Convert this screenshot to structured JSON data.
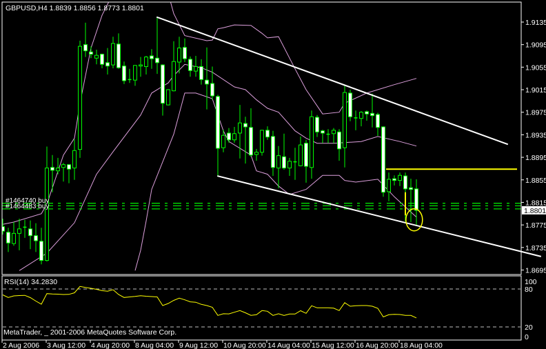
{
  "window": {
    "symbol_header": "GBPUSD,H4  1.8839 1.8856 1.8773 1.8801",
    "copyright": "MetaTrader, _ 2001-2006 MetaQuotes Software Corp."
  },
  "colors": {
    "background": "#000000",
    "frame": "#ffffff",
    "candle_outline": "#00ff00",
    "bear_body": "#ffffff",
    "bull_body": "#000000",
    "bollinger": "#dda0dd",
    "trendline": "#ffffff",
    "annotation": "#ffff00",
    "order_line": "#00e000",
    "rsi_line": "#ffff00",
    "rsi_level": "#c0c0c0"
  },
  "orders": [
    {
      "label": "#1464740 buy",
      "price": 1.8811
    },
    {
      "label": "#1464483 buy",
      "price": 1.8801
    }
  ],
  "chart_data": [
    {
      "type": "candlestick",
      "title": "GBPUSD,H4",
      "ohlc_header": {
        "open": 1.8839,
        "high": 1.8856,
        "low": 1.8773,
        "close": 1.8801
      },
      "current_price": "1.8801",
      "ylim": [
        1.8695,
        1.9135
      ],
      "y_ticks": [
        "1.9135",
        "1.9095",
        "1.9055",
        "1.9015",
        "1.8975",
        "1.8935",
        "1.8895",
        "1.8855",
        "1.8815",
        "1.8775",
        "1.8735",
        "1.8695"
      ],
      "x_ticks": [
        {
          "bar": 0,
          "label": "2 Aug 2006"
        },
        {
          "bar": 8,
          "label": "3 Aug 12:00"
        },
        {
          "bar": 16,
          "label": "4 Aug 20:00"
        },
        {
          "bar": 24,
          "label": "8 Aug 04:00"
        },
        {
          "bar": 32,
          "label": "9 Aug 12:00"
        },
        {
          "bar": 40,
          "label": "10 Aug 20:00"
        },
        {
          "bar": 48,
          "label": "14 Aug 04:00"
        },
        {
          "bar": 56,
          "label": "15 Aug 12:00"
        },
        {
          "bar": 64,
          "label": "16 Aug 20:00"
        },
        {
          "bar": 72,
          "label": "18 Aug 04:00"
        }
      ],
      "candles_ohlc": [
        [
          1.8772,
          1.8786,
          1.8758,
          1.8764
        ],
        [
          1.8762,
          1.877,
          1.8727,
          1.8743
        ],
        [
          1.8742,
          1.878,
          1.8738,
          1.876
        ],
        [
          1.876,
          1.8786,
          1.873,
          1.8768
        ],
        [
          1.877,
          1.8784,
          1.8752,
          1.8771
        ],
        [
          1.8768,
          1.8783,
          1.8732,
          1.8756
        ],
        [
          1.8756,
          1.8778,
          1.8727,
          1.8747
        ],
        [
          1.8746,
          1.877,
          1.8705,
          1.8712
        ],
        [
          1.8712,
          1.8914,
          1.871,
          1.8876
        ],
        [
          1.8877,
          1.8899,
          1.8833,
          1.8872
        ],
        [
          1.8871,
          1.8894,
          1.8865,
          1.8876
        ],
        [
          1.8877,
          1.8885,
          1.8852,
          1.8882
        ],
        [
          1.8882,
          1.8883,
          1.8849,
          1.8874
        ],
        [
          1.8876,
          1.8927,
          1.8855,
          1.8907
        ],
        [
          1.8909,
          1.9102,
          1.8894,
          1.9092
        ],
        [
          1.9095,
          1.9134,
          1.9073,
          1.9084
        ],
        [
          1.9082,
          1.9092,
          1.9071,
          1.9078
        ],
        [
          1.9071,
          1.9086,
          1.906,
          1.9076
        ],
        [
          1.9078,
          1.9079,
          1.9053,
          1.906
        ],
        [
          1.9063,
          1.9089,
          1.9042,
          1.9057
        ],
        [
          1.9059,
          1.9109,
          1.9053,
          1.9097
        ],
        [
          1.9096,
          1.9115,
          1.9052,
          1.9054
        ],
        [
          1.9057,
          1.9065,
          1.9025,
          1.9031
        ],
        [
          1.9032,
          1.9052,
          1.9027,
          1.9033
        ],
        [
          1.9032,
          1.9059,
          1.9022,
          1.9058
        ],
        [
          1.9057,
          1.9073,
          1.9038,
          1.9059
        ],
        [
          1.9056,
          1.9075,
          1.9042,
          1.9073
        ],
        [
          1.9075,
          1.9087,
          1.9052,
          1.907
        ],
        [
          1.9071,
          1.9144,
          1.9043,
          1.9063
        ],
        [
          1.9059,
          1.906,
          1.8969,
          1.8991
        ],
        [
          1.8988,
          1.9016,
          1.8987,
          1.9015
        ],
        [
          1.9013,
          1.9101,
          1.9012,
          1.9065
        ],
        [
          1.9064,
          1.9109,
          1.9044,
          1.9089
        ],
        [
          1.909,
          1.9106,
          1.9064,
          1.907
        ],
        [
          1.9069,
          1.9074,
          1.9038,
          1.9049
        ],
        [
          1.9048,
          1.9075,
          1.9038,
          1.9056
        ],
        [
          1.9056,
          1.9069,
          1.9024,
          1.9033
        ],
        [
          1.9032,
          1.909,
          1.898,
          1.9025
        ],
        [
          1.9026,
          1.9056,
          1.8997,
          1.9004
        ],
        [
          1.9003,
          1.9006,
          1.8862,
          1.8911
        ],
        [
          1.8912,
          1.8944,
          1.8904,
          1.8934
        ],
        [
          1.8938,
          1.8947,
          1.8921,
          1.8926
        ],
        [
          1.8926,
          1.8949,
          1.8921,
          1.8937
        ],
        [
          1.8938,
          1.8988,
          1.8893,
          1.8956
        ],
        [
          1.8955,
          1.8967,
          1.8884,
          1.8949
        ],
        [
          1.8948,
          1.8982,
          1.8896,
          1.8899
        ],
        [
          1.89,
          1.891,
          1.8889,
          1.8904
        ],
        [
          1.8904,
          1.8944,
          1.8898,
          1.8943
        ],
        [
          1.8943,
          1.895,
          1.8926,
          1.8931
        ],
        [
          1.8932,
          1.8942,
          1.8862,
          1.8877
        ],
        [
          1.8876,
          1.8915,
          1.884,
          1.8898
        ],
        [
          1.8896,
          1.8937,
          1.8873,
          1.8876
        ],
        [
          1.8876,
          1.8894,
          1.8862,
          1.8888
        ],
        [
          1.8887,
          1.8912,
          1.8855,
          1.8886
        ],
        [
          1.888,
          1.8932,
          1.8879,
          1.8917
        ],
        [
          1.892,
          1.8926,
          1.885,
          1.8879
        ],
        [
          1.8877,
          1.8978,
          1.8857,
          1.8967
        ],
        [
          1.8966,
          1.897,
          1.8931,
          1.894
        ],
        [
          1.8942,
          1.8944,
          1.892,
          1.8938
        ],
        [
          1.8936,
          1.8945,
          1.892,
          1.8935
        ],
        [
          1.8937,
          1.8947,
          1.892,
          1.8943
        ],
        [
          1.894,
          1.8945,
          1.8889,
          1.891
        ],
        [
          1.8912,
          1.9024,
          1.8877,
          1.901
        ],
        [
          1.9009,
          1.9015,
          1.8959,
          1.8967
        ],
        [
          1.8965,
          1.8978,
          1.8943,
          1.8964
        ],
        [
          1.8964,
          1.8977,
          1.895,
          1.8975
        ],
        [
          1.8976,
          1.8978,
          1.896,
          1.8972
        ],
        [
          1.8973,
          1.9008,
          1.8948,
          1.8969
        ],
        [
          1.8971,
          1.8974,
          1.8933,
          1.8948
        ],
        [
          1.8949,
          1.895,
          1.8825,
          1.8833
        ],
        [
          1.8834,
          1.8868,
          1.8817,
          1.8856
        ],
        [
          1.8857,
          1.8863,
          1.8845,
          1.8854
        ],
        [
          1.8854,
          1.8868,
          1.8844,
          1.8863
        ],
        [
          1.8862,
          1.8868,
          1.8781,
          1.8839
        ],
        [
          1.8841,
          1.8857,
          1.878,
          1.8838
        ],
        [
          1.8839,
          1.8856,
          1.8773,
          1.8801
        ]
      ],
      "bollinger_bands": {
        "upper": [
          [
            0,
            1.8776
          ],
          [
            2,
            1.878
          ],
          [
            7,
            1.8795
          ],
          [
            8,
            1.8812
          ],
          [
            11,
            1.8899
          ],
          [
            13,
            1.8929
          ],
          [
            14,
            1.8991
          ],
          [
            16,
            1.9089
          ],
          [
            18,
            1.9147
          ],
          [
            20,
            1.9186
          ],
          [
            25,
            1.9223
          ],
          [
            30,
            1.9186
          ],
          [
            31,
            1.915
          ],
          [
            33,
            1.9111
          ],
          [
            37,
            1.9102
          ],
          [
            38,
            1.9103
          ],
          [
            39,
            1.9123
          ],
          [
            40,
            1.9125
          ],
          [
            42,
            1.913
          ],
          [
            45,
            1.9129
          ],
          [
            47,
            1.9115
          ],
          [
            48,
            1.9107
          ],
          [
            50,
            1.9109
          ],
          [
            53,
            1.9052
          ],
          [
            55,
            1.9015
          ],
          [
            58,
            1.8972
          ],
          [
            61,
            1.8975
          ],
          [
            62,
            1.8991
          ],
          [
            66,
            1.9009
          ],
          [
            71,
            1.9024
          ],
          [
            75,
            1.9035
          ]
        ],
        "middle": [
          [
            3,
            1.8694
          ],
          [
            8,
            1.8725
          ],
          [
            13,
            1.8779
          ],
          [
            17,
            1.8865
          ],
          [
            20,
            1.8905
          ],
          [
            25,
            1.897
          ],
          [
            27,
            1.9009
          ],
          [
            30,
            1.9027
          ],
          [
            31,
            1.904
          ],
          [
            33,
            1.906
          ],
          [
            36,
            1.9054
          ],
          [
            38,
            1.9046
          ],
          [
            42,
            1.902
          ],
          [
            44,
            1.9015
          ],
          [
            46,
            1.8997
          ],
          [
            48,
            1.8982
          ],
          [
            50,
            1.8975
          ],
          [
            53,
            1.8942
          ],
          [
            55,
            1.8929
          ],
          [
            57,
            1.892
          ],
          [
            60,
            1.892
          ],
          [
            65,
            1.8923
          ],
          [
            68,
            1.8932
          ],
          [
            72,
            1.8923
          ],
          [
            75,
            1.8915
          ]
        ],
        "lower": [
          [
            24,
            1.8694
          ],
          [
            25,
            1.873
          ],
          [
            26,
            1.8782
          ],
          [
            27,
            1.8838
          ],
          [
            31,
            1.8936
          ],
          [
            33,
            1.9009
          ],
          [
            35,
            1.9009
          ],
          [
            38,
            1.8999
          ],
          [
            40,
            1.8942
          ],
          [
            41,
            1.8923
          ],
          [
            45,
            1.8899
          ],
          [
            46,
            1.8871
          ],
          [
            48,
            1.8865
          ],
          [
            50,
            1.8844
          ],
          [
            52,
            1.8829
          ],
          [
            55,
            1.8838
          ],
          [
            58,
            1.8863
          ],
          [
            61,
            1.8863
          ],
          [
            62,
            1.8854
          ],
          [
            64,
            1.8851
          ],
          [
            68,
            1.8856
          ],
          [
            71,
            1.8825
          ],
          [
            73,
            1.8807
          ],
          [
            75,
            1.8789
          ]
        ]
      },
      "trendlines": [
        {
          "from": [
            27.9,
            1.9144
          ],
          "to": [
            91.6,
            1.8918
          ]
        },
        {
          "from": [
            38.9,
            1.8862
          ],
          "to": [
            97.6,
            1.8719
          ]
        }
      ],
      "annotations": {
        "horizontal_line": {
          "from_bar": 69.5,
          "to_bar": 93.25,
          "price": 1.8874
        },
        "vertical_line": {
          "bar": 73,
          "from_price": 1.8833,
          "to_price": 1.8792
        },
        "circle": {
          "bar": 74.6,
          "price": 1.8784
        }
      },
      "extra_line_price": 1.8809
    },
    {
      "type": "line",
      "title": "RSI(14) 34.2830",
      "ylim": [
        0,
        100
      ],
      "y_ticks": [
        "100",
        "80",
        "20",
        "0"
      ],
      "levels": [
        80,
        20
      ],
      "rsi_values": [
        70.7,
        66.6,
        69.1,
        69.6,
        70.0,
        66.4,
        60.9,
        56.0,
        72.7,
        72.1,
        71.8,
        71.3,
        71.5,
        74.0,
        84.0,
        82.4,
        81.1,
        79.5,
        77.4,
        76.5,
        78.9,
        71.3,
        66.6,
        67.5,
        68.2,
        69.3,
        68.5,
        68.0,
        67.5,
        53.8,
        57.1,
        62.0,
        65.5,
        62.9,
        59.7,
        59.1,
        55.7,
        53.8,
        51.1,
        38.2,
        40.9,
        40.6,
        43.2,
        45.9,
        42.4,
        38.3,
        39.3,
        45.9,
        44.8,
        38.2,
        40.9,
        38.2,
        40.4,
        40.4,
        45.6,
        41.5,
        53.5,
        50.2,
        50.2,
        50.2,
        49.7,
        45.9,
        58.4,
        52.7,
        53.5,
        53.8,
        53.8,
        52.7,
        49.5,
        35.8,
        39.3,
        39.9,
        39.6,
        38.2,
        38.2,
        34.28
      ]
    }
  ]
}
